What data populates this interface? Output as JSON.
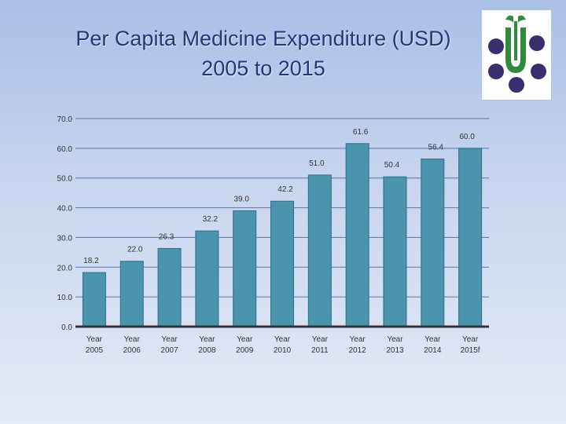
{
  "page": {
    "title_line1": "Per Capita Medicine Expenditure (USD)",
    "title_line2": "2005 to 2015"
  },
  "logo": {
    "icon": "pharma-logo-icon",
    "colors": {
      "dots": "#3b2e6e",
      "leaf": "#2e8b3a"
    }
  },
  "chart_data": {
    "type": "bar",
    "categories": [
      [
        "Year",
        "2005"
      ],
      [
        "Year",
        "2006"
      ],
      [
        "Year",
        "2007"
      ],
      [
        "Year",
        "2008"
      ],
      [
        "Year",
        "2009"
      ],
      [
        "Year",
        "2010"
      ],
      [
        "Year",
        "2011"
      ],
      [
        "Year",
        "2012"
      ],
      [
        "Year",
        "2013"
      ],
      [
        "Year",
        "2014"
      ],
      [
        "Year",
        "2015f"
      ]
    ],
    "values": [
      18.2,
      22.0,
      26.3,
      32.2,
      39.0,
      42.2,
      51.0,
      61.6,
      50.4,
      56.4,
      60.0
    ],
    "data_labels": [
      "18.2",
      "22.0",
      "26.3",
      "32.2",
      "39.0",
      "42.2",
      "51.0",
      "61.6",
      "50.4",
      "56.4",
      "60.0"
    ],
    "y_ticks": [
      "0.0",
      "10.0",
      "20.0",
      "30.0",
      "40.0",
      "50.0",
      "60.0",
      "70.0"
    ],
    "ylim": [
      0,
      70
    ],
    "grid": true,
    "legend": "none",
    "colors": {
      "bar": "#4a94ad",
      "bar_edge": "#2f6f86",
      "grid": "#5577aa",
      "axis": "#333333",
      "text": "#333333"
    }
  }
}
